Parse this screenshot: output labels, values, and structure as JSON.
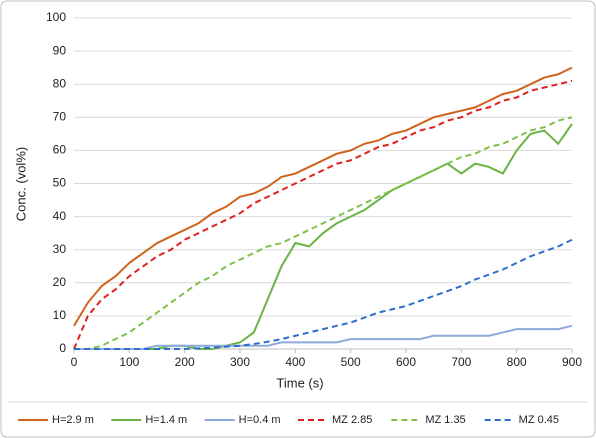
{
  "chart_data": {
    "type": "line",
    "x_label": "Time (s)",
    "y_label": "Conc. (vol%)",
    "x": [
      0,
      25,
      50,
      75,
      100,
      125,
      150,
      175,
      200,
      225,
      250,
      275,
      300,
      325,
      350,
      375,
      400,
      425,
      450,
      475,
      500,
      525,
      550,
      575,
      600,
      625,
      650,
      675,
      700,
      725,
      750,
      775,
      800,
      825,
      850,
      875,
      900
    ],
    "series": [
      {
        "name": "H=2.9 m",
        "color": "#d0621b",
        "dashed": false,
        "values": [
          7,
          14,
          19,
          22,
          26,
          29,
          32,
          34,
          36,
          38,
          41,
          43,
          46,
          47,
          49,
          52,
          53,
          55,
          57,
          59,
          60,
          62,
          63,
          65,
          66,
          68,
          70,
          71,
          72,
          73,
          75,
          77,
          78,
          80,
          82,
          83,
          85
        ]
      },
      {
        "name": "H=1.4 m",
        "color": "#6ab344",
        "dashed": false,
        "values": [
          0,
          0,
          0,
          0,
          0,
          0,
          0,
          1,
          1,
          0,
          0,
          1,
          2,
          5,
          15,
          25,
          32,
          31,
          35,
          38,
          40,
          42,
          45,
          48,
          50,
          52,
          54,
          56,
          53,
          56,
          55,
          53,
          60,
          65,
          66,
          62,
          68
        ]
      },
      {
        "name": "H=0.4 m",
        "color": "#8eaadb",
        "dashed": false,
        "values": [
          0,
          0,
          0,
          0,
          0,
          0,
          1,
          1,
          1,
          1,
          1,
          1,
          1,
          1,
          1,
          2,
          2,
          2,
          2,
          2,
          3,
          3,
          3,
          3,
          3,
          3,
          4,
          4,
          4,
          4,
          4,
          5,
          6,
          6,
          6,
          6,
          7
        ]
      },
      {
        "name": "MZ 2.85",
        "color": "#e0201e",
        "dashed": true,
        "values": [
          0,
          10,
          15,
          18,
          22,
          25,
          28,
          30,
          33,
          35,
          37,
          39,
          41,
          44,
          46,
          48,
          50,
          52,
          54,
          56,
          57,
          59,
          61,
          62,
          64,
          66,
          67,
          69,
          70,
          72,
          73,
          75,
          76,
          78,
          79,
          80,
          81
        ]
      },
      {
        "name": "MZ 1.35",
        "color": "#7ec04a",
        "dashed": true,
        "values": [
          0,
          0,
          1,
          3,
          5,
          8,
          11,
          14,
          17,
          20,
          22,
          25,
          27,
          29,
          31,
          32,
          34,
          36,
          38,
          40,
          42,
          44,
          46,
          48,
          50,
          52,
          54,
          56,
          58,
          59,
          61,
          62,
          64,
          66,
          67,
          69,
          70
        ]
      },
      {
        "name": "MZ 0.45",
        "color": "#2f6fcc",
        "dashed": true,
        "values": [
          0,
          0,
          0,
          0,
          0,
          0,
          0,
          0,
          0,
          0.2,
          0.4,
          0.7,
          1,
          1.5,
          2.2,
          3,
          4,
          5,
          6,
          7,
          8,
          9.5,
          11,
          12,
          13,
          14.5,
          16,
          17.5,
          19,
          21,
          22.5,
          24,
          26,
          28,
          29.5,
          31,
          33
        ]
      }
    ],
    "xlim": [
      0,
      900
    ],
    "xticks": [
      0,
      100,
      200,
      300,
      400,
      500,
      600,
      700,
      800,
      900
    ],
    "ylim": [
      0,
      100
    ],
    "yticks": [
      0,
      10,
      20,
      30,
      40,
      50,
      60,
      70,
      80,
      90,
      100
    ],
    "grid": true,
    "legend": "bottom"
  }
}
